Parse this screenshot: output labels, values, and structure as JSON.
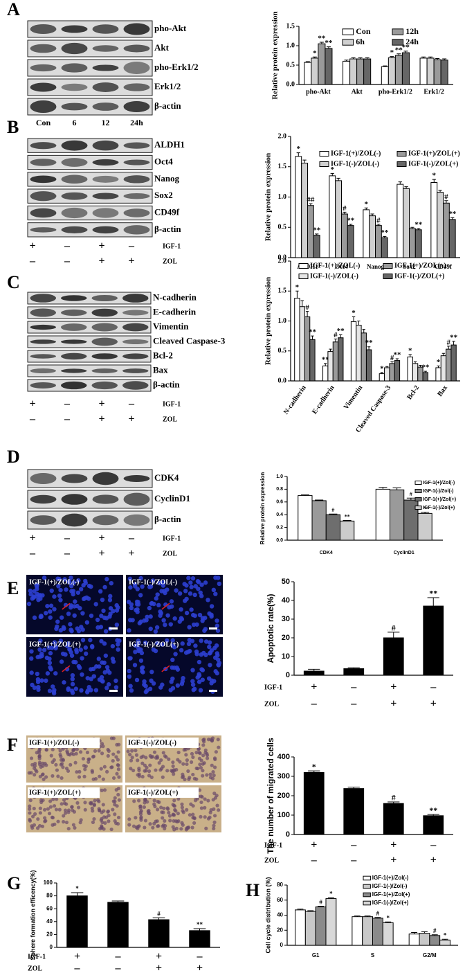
{
  "panels": [
    {
      "letter": "A",
      "blot_labels": [
        "pho-Akt",
        "Akt",
        "pho-Erk1/2",
        "Erk1/2",
        "β-actin"
      ],
      "lane_labels": [
        "Con",
        "6",
        "12",
        "24h"
      ]
    },
    {
      "letter": "B",
      "blot_labels": [
        "ALDH1",
        "Oct4",
        "Nanog",
        "Sox2",
        "CD49f",
        "β-actin"
      ],
      "conditions": [
        {
          "name": "IGF-1",
          "signs": [
            "+",
            "–",
            "+",
            "–"
          ]
        },
        {
          "name": "ZOL",
          "signs": [
            "–",
            "–",
            "+",
            "+"
          ]
        }
      ]
    },
    {
      "letter": "C",
      "blot_labels": [
        "N-cadherin",
        "E-cadherin",
        "Vimentin",
        "Cleaved Caspase-3",
        "Bcl-2",
        "Bax",
        "β-actin"
      ],
      "conditions": [
        {
          "name": "IGF-1",
          "signs": [
            "+",
            "–",
            "+",
            "–"
          ]
        },
        {
          "name": "ZOL",
          "signs": [
            "–",
            "–",
            "+",
            "+"
          ]
        }
      ]
    },
    {
      "letter": "D",
      "blot_labels": [
        "CDK4",
        "CyclinD1",
        "β-actin"
      ],
      "conditions": [
        {
          "name": "IGF-1",
          "signs": [
            "+",
            "–",
            "+",
            "–"
          ]
        },
        {
          "name": "ZOL",
          "signs": [
            "–",
            "–",
            "+",
            "+"
          ]
        }
      ]
    },
    {
      "letter": "E",
      "image_labels": [
        "IGF-1(+)/ZOL(-)",
        "IGF-1(-)/ZOL(-)",
        "IGF-1(+)/ZOL(+)",
        "IGF-1(-)/ZOL(+)"
      ],
      "conditions": [
        {
          "name": "IGF-1",
          "signs": [
            "+",
            "–",
            "+",
            "–"
          ]
        },
        {
          "name": "ZOL",
          "signs": [
            "–",
            "–",
            "+",
            "+"
          ]
        }
      ]
    },
    {
      "letter": "F",
      "image_labels": [
        "IGF-1(+)/ZOL(-)",
        "IGF-1(-)/ZOL(-)",
        "IGF-1(+)/ZOL(+)",
        "IGF-1(-)/ZOL(+)"
      ],
      "conditions": [
        {
          "name": "IGF-1",
          "signs": [
            "+",
            "–",
            "+",
            "–"
          ]
        },
        {
          "name": "ZOL",
          "signs": [
            "–",
            "–",
            "+",
            "+"
          ]
        }
      ]
    },
    {
      "letter": "G",
      "conditions": [
        {
          "name": "IGF-1",
          "signs": [
            "+",
            "–",
            "+",
            "–"
          ]
        },
        {
          "name": "ZOL",
          "signs": [
            "–",
            "–",
            "+",
            "+"
          ]
        }
      ]
    },
    {
      "letter": "H"
    }
  ],
  "chart_data": [
    {
      "type": "bar",
      "ylabel": "Relative protein expression",
      "categories": [
        "pho-Akt",
        "Akt",
        "pho-Erk1/2",
        "Erk1/2"
      ],
      "ylim": [
        0,
        1.5
      ],
      "yticks": [
        {
          "value": 0,
          "label": "0.0"
        },
        0.5,
        {
          "value": 1,
          "label": "1.0"
        },
        1.5
      ],
      "legend": "upper right",
      "series": [
        {
          "name": "Con",
          "color": "#ffffff",
          "values": [
            0.57,
            0.6,
            0.46,
            0.68
          ],
          "errors": [
            0.02,
            0.03,
            0.02,
            0.03
          ],
          "annotations": [
            null,
            null,
            null,
            null
          ]
        },
        {
          "name": "6h",
          "color": "#d0d0d0",
          "values": [
            0.68,
            0.66,
            0.69,
            0.68
          ],
          "errors": [
            0.03,
            0.03,
            0.03,
            0.03
          ],
          "annotations": [
            "*",
            null,
            "*",
            null
          ]
        },
        {
          "name": "12h",
          "color": "#9a9a9a",
          "values": [
            1.05,
            0.66,
            0.75,
            0.64
          ],
          "errors": [
            0.04,
            0.03,
            0.04,
            0.03
          ],
          "annotations": [
            "**",
            null,
            "**",
            null
          ]
        },
        {
          "name": "24h",
          "color": "#666666",
          "values": [
            0.93,
            0.66,
            0.82,
            0.63
          ],
          "errors": [
            0.04,
            0.03,
            0.04,
            0.03
          ],
          "annotations": [
            "**",
            null,
            "**",
            null
          ]
        }
      ]
    },
    {
      "type": "bar",
      "ylabel": "Relative protein expression",
      "categories": [
        "ALDH1",
        "Oct4",
        "Nanog",
        "Sox2",
        "CD49f"
      ],
      "ylim": [
        0,
        2
      ],
      "yticks": [
        {
          "value": 0,
          "label": "0.0"
        },
        0.5,
        {
          "value": 1,
          "label": "1.0"
        },
        1.5,
        {
          "value": 2,
          "label": "2.0"
        }
      ],
      "legend": "upper right",
      "series": [
        {
          "name": "IGF-1(+)/ZOL(-)",
          "color": "#ffffff",
          "values": [
            1.67,
            1.35,
            0.79,
            1.21,
            1.24
          ],
          "errors": [
            0.06,
            0.04,
            0.03,
            0.04,
            0.05
          ],
          "annotations": [
            "*",
            "*",
            "*",
            null,
            "*"
          ]
        },
        {
          "name": "IGF-1(-)/ZOL(-)",
          "color": "#d0d0d0",
          "values": [
            1.56,
            1.27,
            0.69,
            1.14,
            1.08
          ],
          "errors": [
            0.05,
            0.04,
            0.03,
            0.03,
            0.03
          ],
          "annotations": [
            null,
            null,
            null,
            null,
            null
          ]
        },
        {
          "name": "IGF-1(+)/ZOL(+)",
          "color": "#9a9a9a",
          "values": [
            0.86,
            0.72,
            0.53,
            0.48,
            0.9
          ],
          "errors": [
            0.03,
            0.03,
            0.02,
            0.02,
            0.04
          ],
          "annotations": [
            "##",
            "#",
            "#",
            null,
            "#"
          ]
        },
        {
          "name": "IGF-1(-)/ZOL(+)",
          "color": "#666666",
          "values": [
            0.37,
            0.53,
            0.33,
            0.46,
            0.63
          ],
          "errors": [
            0.02,
            0.02,
            0.02,
            0.02,
            0.03
          ],
          "annotations": [
            "**",
            "**",
            "**",
            "**",
            "**"
          ]
        }
      ]
    },
    {
      "type": "bar",
      "ylabel": "Relative protein expression",
      "categories": [
        "N-cadherin",
        "E-cadherin",
        "Vimentin",
        "Cleaved Caspase-3",
        "Bcl-2",
        "Bax"
      ],
      "ylim": [
        0,
        2
      ],
      "yticks": [
        {
          "value": 0,
          "label": "0.0"
        },
        0.5,
        {
          "value": 1,
          "label": "1.0"
        },
        1.5,
        {
          "value": 2,
          "label": "2.0"
        }
      ],
      "legend": "upper right",
      "series": [
        {
          "name": "IGF-1(+)/ZOL(-)",
          "color": "#ffffff",
          "values": [
            1.38,
            0.25,
            0.99,
            0.12,
            0.4,
            0.22
          ],
          "errors": [
            0.12,
            0.04,
            0.08,
            0.02,
            0.04,
            0.03
          ],
          "annotations": [
            "*",
            "**",
            "*",
            "*",
            "*",
            "*"
          ]
        },
        {
          "name": "IGF-1(-)/ZOL(-)",
          "color": "#e6e6e6",
          "values": [
            1.24,
            0.49,
            0.93,
            0.22,
            0.29,
            0.42
          ],
          "errors": [
            0.1,
            0.04,
            0.07,
            0.02,
            0.03,
            0.04
          ],
          "annotations": [
            null,
            null,
            null,
            null,
            null,
            null
          ]
        },
        {
          "name": "IGF-1(+)/ZOL(+)",
          "color": "#9a9a9a",
          "values": [
            1.07,
            0.65,
            0.8,
            0.29,
            0.23,
            0.53
          ],
          "errors": [
            0.09,
            0.05,
            0.06,
            0.03,
            0.03,
            0.05
          ],
          "annotations": [
            "#",
            "#",
            null,
            "#",
            null,
            "#"
          ]
        },
        {
          "name": "IGF-1(-)/ZOL(+)",
          "color": "#666666",
          "values": [
            0.69,
            0.72,
            0.52,
            0.34,
            0.14,
            0.6
          ],
          "errors": [
            0.06,
            0.05,
            0.05,
            0.03,
            0.02,
            0.06
          ],
          "annotations": [
            "**",
            "**",
            "**",
            "**",
            "**",
            "**"
          ]
        }
      ]
    },
    {
      "type": "bar",
      "ylabel": "Relative protein expression",
      "categories": [
        "CDK4",
        "CyclinD1"
      ],
      "ylim": [
        0,
        1
      ],
      "yticks": [
        {
          "value": 0,
          "label": "0.0"
        },
        0.2,
        0.4,
        0.6,
        0.8,
        {
          "value": 1,
          "label": "1.0"
        }
      ],
      "legend": "upper right",
      "series": [
        {
          "name": "IGF-1(+)/Zol(-)",
          "color": "#ffffff",
          "values": [
            0.7,
            0.8
          ],
          "errors": [
            0.01,
            0.03
          ],
          "annotations": [
            null,
            null
          ]
        },
        {
          "name": "IGF-1(-)/Zol(-)",
          "color": "#9a9a9a",
          "values": [
            0.62,
            0.79
          ],
          "errors": [
            0.01,
            0.03
          ],
          "annotations": [
            null,
            null
          ]
        },
        {
          "name": "IGF-1(+)/Zol(+)",
          "color": "#6e6e6e",
          "values": [
            0.4,
            0.63
          ],
          "errors": [
            0.01,
            0.03
          ],
          "annotations": [
            "#",
            "#"
          ]
        },
        {
          "name": "IGF-1(-)/Zol(+)",
          "color": "#cccccc",
          "values": [
            0.3,
            0.42
          ],
          "errors": [
            0.01,
            0.02
          ],
          "annotations": [
            "**",
            "*"
          ]
        }
      ]
    },
    {
      "type": "bar",
      "ylabel": "Apoptotic rate(%)",
      "ylim": [
        0,
        50
      ],
      "yticks": [
        0,
        10,
        20,
        30,
        40,
        50
      ],
      "color": "#000000",
      "values": [
        2.2,
        3.5,
        20,
        37
      ],
      "errors": [
        1,
        0.5,
        3,
        4.5
      ],
      "annotations": [
        null,
        null,
        "#",
        "**"
      ]
    },
    {
      "type": "bar",
      "ylabel": "The number of migrated cells",
      "ylim": [
        0,
        400
      ],
      "yticks": [
        0,
        100,
        200,
        300,
        400
      ],
      "color": "#000000",
      "values": [
        320,
        237,
        160,
        97
      ],
      "errors": [
        8,
        7,
        8,
        6
      ],
      "annotations": [
        "*",
        null,
        "#",
        "**"
      ]
    },
    {
      "type": "bar",
      "ylabel": "Sphere formation efficency(%)",
      "ylim": [
        0,
        100
      ],
      "yticks": [
        0,
        20,
        40,
        60,
        80,
        100
      ],
      "color": "#000000",
      "values": [
        80,
        70,
        43,
        26
      ],
      "errors": [
        5,
        2,
        3,
        3
      ],
      "annotations": [
        "*",
        null,
        "#",
        "**"
      ]
    },
    {
      "type": "bar",
      "ylabel": "Cell cycle distribution (%)",
      "categories": [
        "G1",
        "S",
        "G2/M"
      ],
      "ylim": [
        0,
        80
      ],
      "yticks": [
        0,
        20,
        40,
        60,
        80
      ],
      "legend": "upper right",
      "series": [
        {
          "name": "IGF-1(+)/Zol(-)",
          "color": "#ffffff",
          "values": [
            47,
            38,
            15
          ],
          "errors": [
            1,
            1,
            2
          ],
          "annotations": [
            null,
            null,
            null
          ]
        },
        {
          "name": "IGF-1(-)/Zol(-)",
          "color": "#c8c8c8",
          "values": [
            45,
            38,
            16
          ],
          "errors": [
            1,
            1,
            2
          ],
          "annotations": [
            null,
            null,
            null
          ]
        },
        {
          "name": "IGF-1(+)/Zol(+)",
          "color": "#8a8a8a",
          "values": [
            51,
            36,
            13
          ],
          "errors": [
            1,
            1,
            1
          ],
          "annotations": [
            "#",
            "#",
            "#"
          ]
        },
        {
          "name": "IGF-1(-)/Zol(+)",
          "color": "#d8d8d8",
          "values": [
            62,
            30,
            7
          ],
          "errors": [
            1,
            1,
            1
          ],
          "annotations": [
            "*",
            "*",
            "*"
          ]
        }
      ]
    }
  ]
}
